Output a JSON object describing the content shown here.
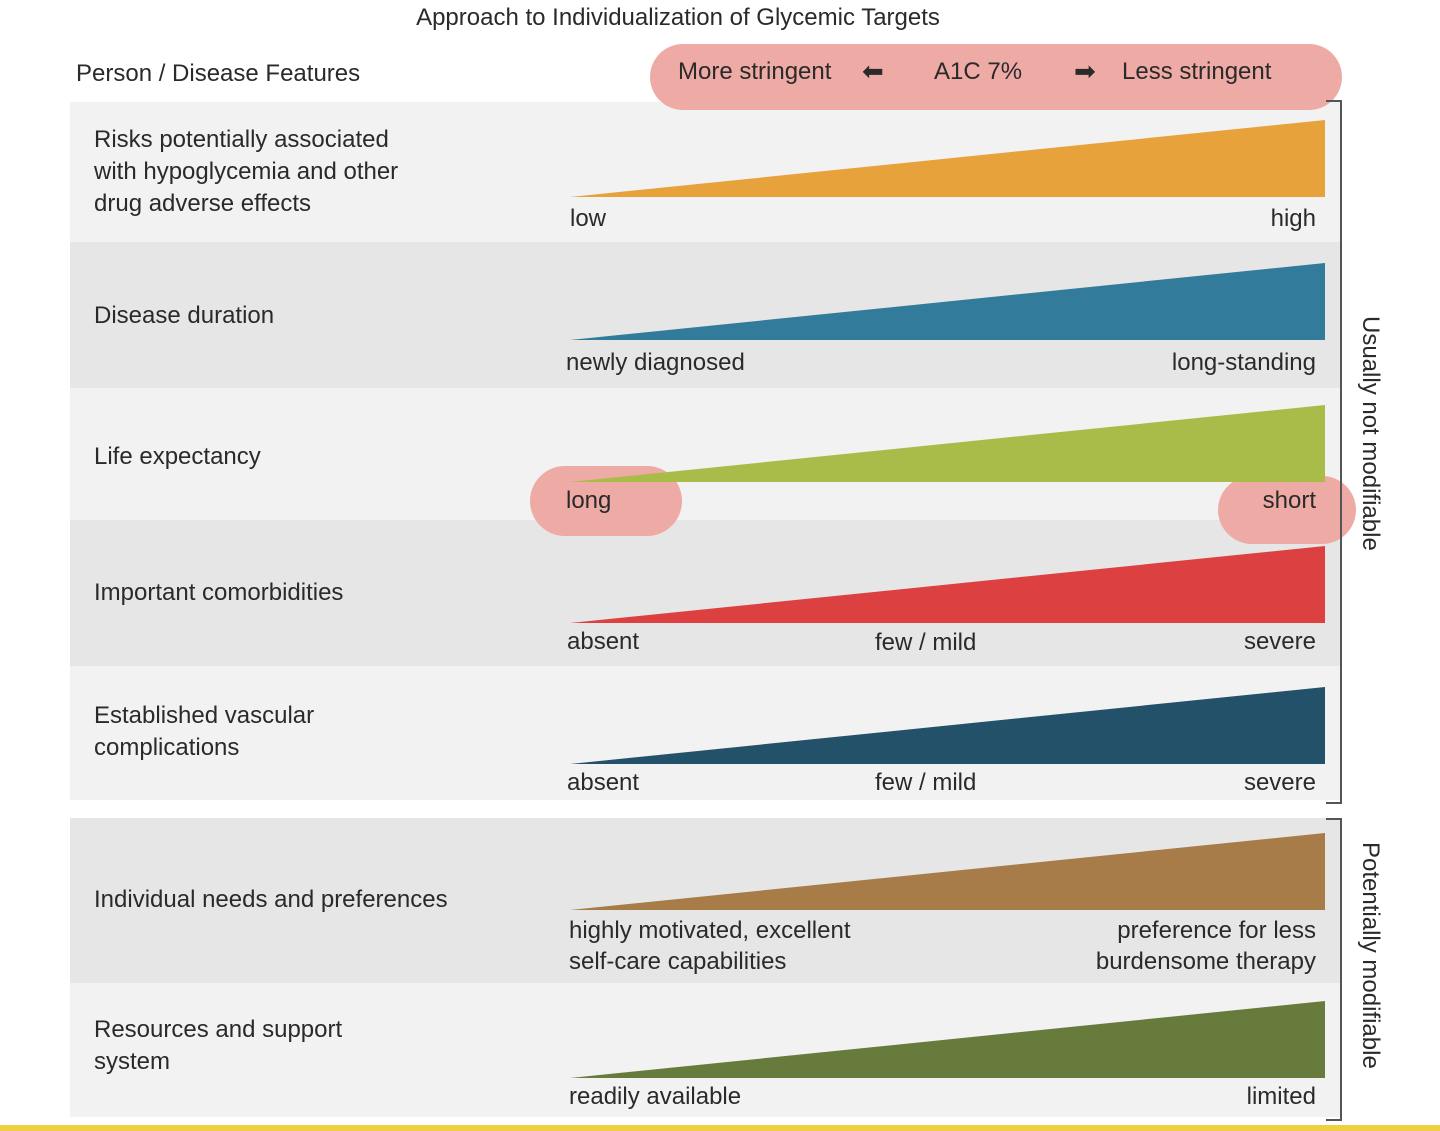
{
  "title": "Approach to Individualization of Glycemic Targets",
  "header": {
    "features": "Person / Disease Features",
    "more": "More stringent",
    "center": "A1C 7%",
    "less": "Less stringent"
  },
  "groups": {
    "not_modifiable": "Usually not modifiable",
    "modifiable": "Potentially modifiable"
  },
  "rows": [
    {
      "label": "Risks potentially associated with hypoglycemia and other drug adverse effects",
      "left": "low",
      "mid": "",
      "right": "high",
      "color": "#e8a23c"
    },
    {
      "label": "Disease duration",
      "left": "newly diagnosed",
      "mid": "",
      "right": "long-standing",
      "color": "#327b9a"
    },
    {
      "label": "Life expectancy",
      "left": "long",
      "mid": "",
      "right": "short",
      "color": "#a9bc4a"
    },
    {
      "label": "Important comorbidities",
      "left": "absent",
      "mid": "few / mild",
      "right": "severe",
      "color": "#dc4040"
    },
    {
      "label": "Established vascular complications",
      "left": "absent",
      "mid": "few / mild",
      "right": "severe",
      "color": "#235169"
    },
    {
      "label": "Individual needs and preferences",
      "left": "highly motivated, excellent self-care capabilities",
      "mid": "",
      "right": "preference for less burdensome therapy",
      "color": "#a77c48"
    },
    {
      "label": "Resources and support system",
      "left": "readily available",
      "mid": "",
      "right": "limited",
      "color": "#677c3c"
    }
  ]
}
